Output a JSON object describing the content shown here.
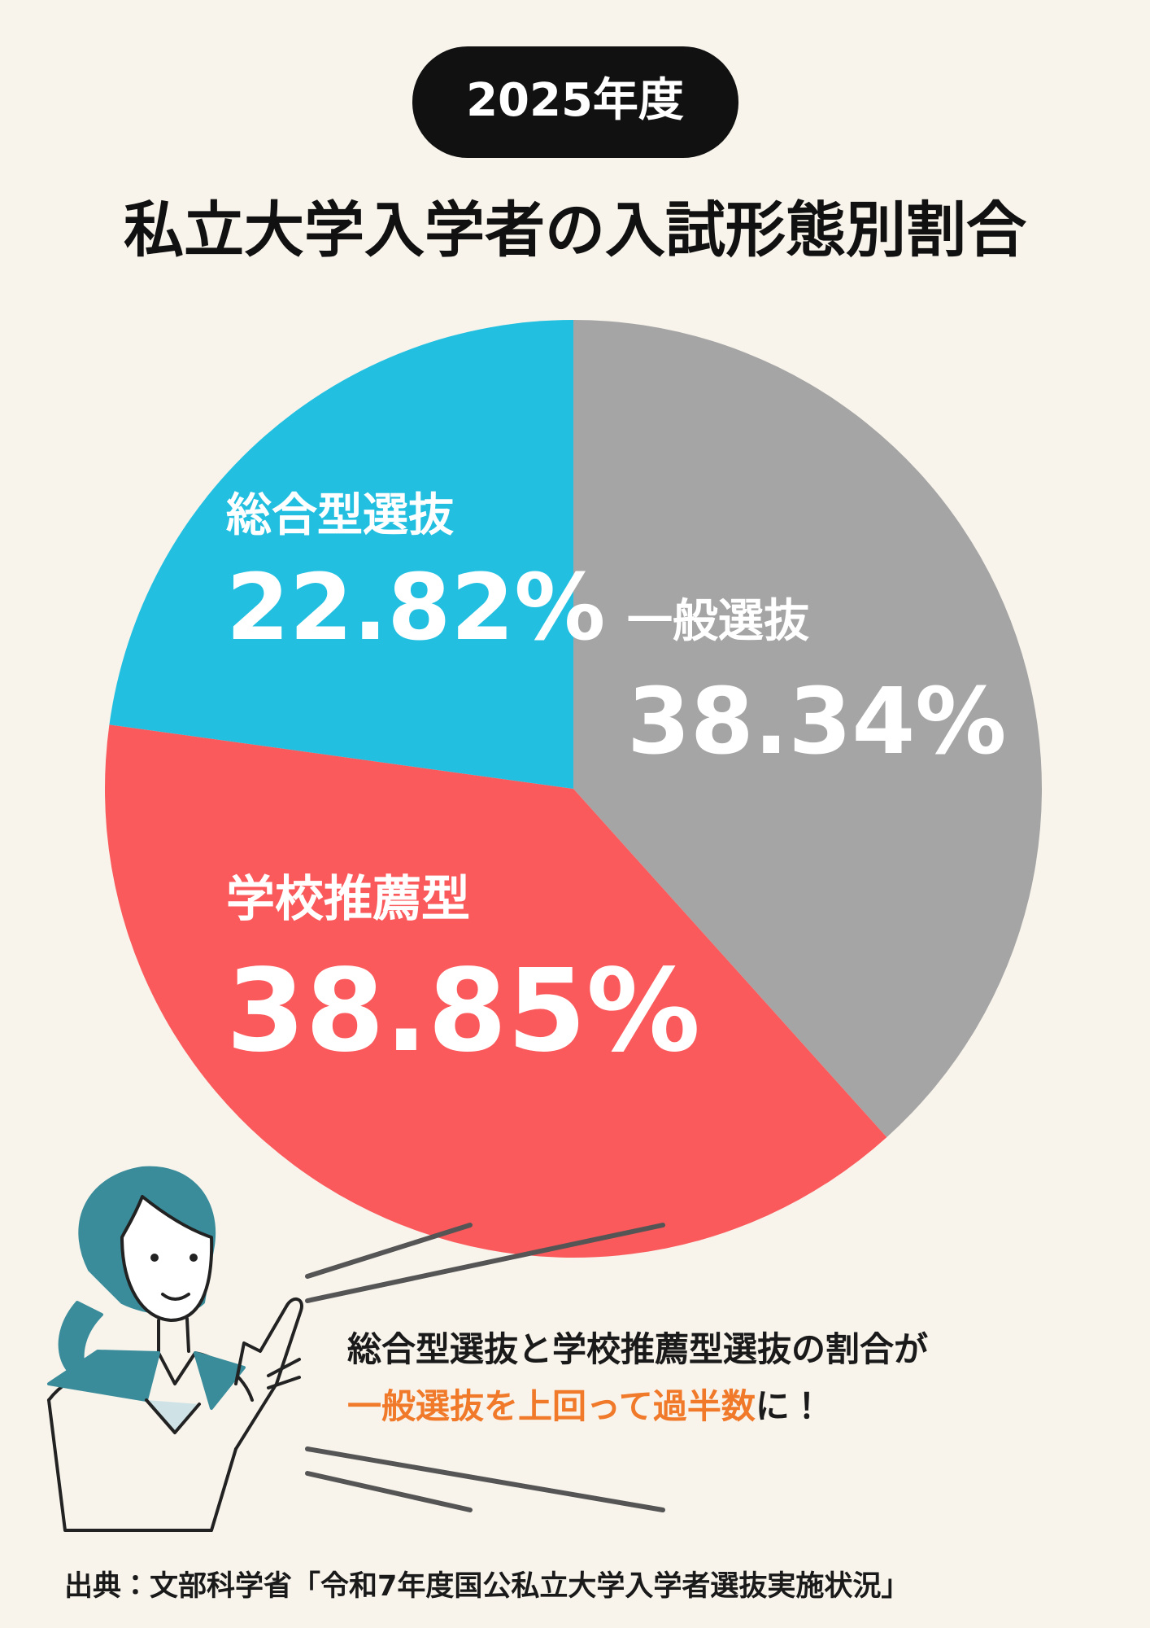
{
  "header": {
    "badge": "2025年度",
    "title": "私立大学入学者の入試形態別割合"
  },
  "chart_data": {
    "type": "pie",
    "categories": [
      "一般選抜",
      "学校推薦型",
      "総合型選抜"
    ],
    "values": [
      38.34,
      38.85,
      22.82
    ],
    "value_labels": [
      "38.34%",
      "38.85%",
      "22.82%"
    ],
    "colors": [
      "#a5a5a5",
      "#fb5a5c",
      "#22bfe0"
    ]
  },
  "message": {
    "line1": "総合型選抜と学校推薦型選抜の割合が",
    "line2_highlight": "一般選抜を上回って過半数",
    "line2_rest": "に！"
  },
  "source": "出典：文部科学省「令和7年度国公私立大学入学者選抜実施状況」"
}
